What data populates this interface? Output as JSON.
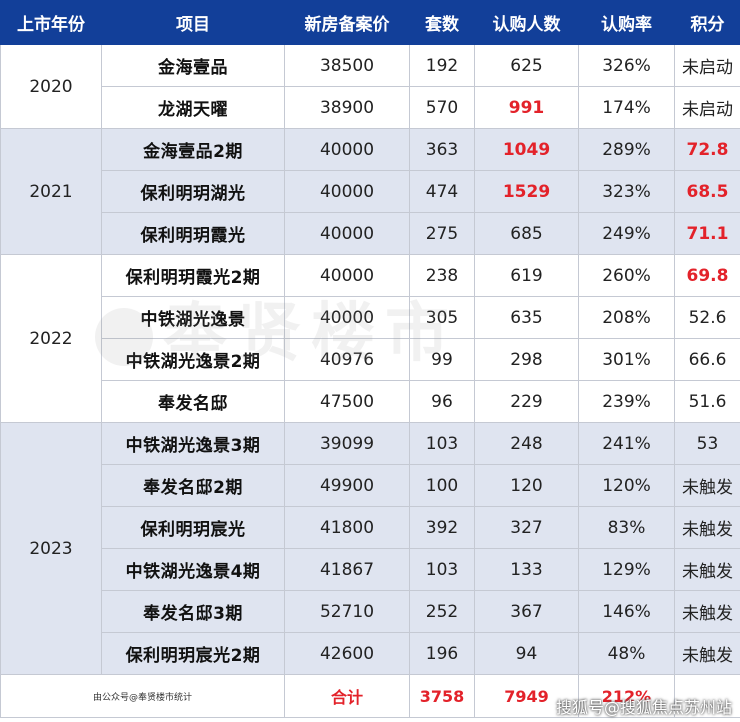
{
  "headers": [
    "上市年份",
    "项目",
    "新房备案价",
    "套数",
    "认购人数",
    "认购率",
    "积分"
  ],
  "years": [
    {
      "year": "2020",
      "rows": [
        {
          "name": "金海壹品",
          "price": "38500",
          "units": "192",
          "buyers": "625",
          "rate": "326%",
          "score": "未启动",
          "buyers_hl": false,
          "score_hl": false
        },
        {
          "name": "龙湖天曜",
          "price": "38900",
          "units": "570",
          "buyers": "991",
          "rate": "174%",
          "score": "未启动",
          "buyers_hl": true,
          "score_hl": false
        }
      ]
    },
    {
      "year": "2021",
      "rows": [
        {
          "name": "金海壹品2期",
          "price": "40000",
          "units": "363",
          "buyers": "1049",
          "rate": "289%",
          "score": "72.8",
          "buyers_hl": true,
          "score_hl": true
        },
        {
          "name": "保利明玥湖光",
          "price": "40000",
          "units": "474",
          "buyers": "1529",
          "rate": "323%",
          "score": "68.5",
          "buyers_hl": true,
          "score_hl": true
        },
        {
          "name": "保利明玥霞光",
          "price": "40000",
          "units": "275",
          "buyers": "685",
          "rate": "249%",
          "score": "71.1",
          "buyers_hl": false,
          "score_hl": true
        }
      ]
    },
    {
      "year": "2022",
      "rows": [
        {
          "name": "保利明玥霞光2期",
          "price": "40000",
          "units": "238",
          "buyers": "619",
          "rate": "260%",
          "score": "69.8",
          "buyers_hl": false,
          "score_hl": true
        },
        {
          "name": "中铁湖光逸景",
          "price": "40000",
          "units": "305",
          "buyers": "635",
          "rate": "208%",
          "score": "52.6",
          "buyers_hl": false,
          "score_hl": false
        },
        {
          "name": "中铁湖光逸景2期",
          "price": "40976",
          "units": "99",
          "buyers": "298",
          "rate": "301%",
          "score": "66.6",
          "buyers_hl": false,
          "score_hl": false
        },
        {
          "name": "奉发名邸",
          "price": "47500",
          "units": "96",
          "buyers": "229",
          "rate": "239%",
          "score": "51.6",
          "buyers_hl": false,
          "score_hl": false
        }
      ]
    },
    {
      "year": "2023",
      "rows": [
        {
          "name": "中铁湖光逸景3期",
          "price": "39099",
          "units": "103",
          "buyers": "248",
          "rate": "241%",
          "score": "53",
          "buyers_hl": false,
          "score_hl": false
        },
        {
          "name": "奉发名邸2期",
          "price": "49900",
          "units": "100",
          "buyers": "120",
          "rate": "120%",
          "score": "未触发",
          "buyers_hl": false,
          "score_hl": false
        },
        {
          "name": "保利明玥宸光",
          "price": "41800",
          "units": "392",
          "buyers": "327",
          "rate": "83%",
          "score": "未触发",
          "buyers_hl": false,
          "score_hl": false
        },
        {
          "name": "中铁湖光逸景4期",
          "price": "41867",
          "units": "103",
          "buyers": "133",
          "rate": "129%",
          "score": "未触发",
          "buyers_hl": false,
          "score_hl": false
        },
        {
          "name": "奉发名邸3期",
          "price": "52710",
          "units": "252",
          "buyers": "367",
          "rate": "146%",
          "score": "未触发",
          "buyers_hl": false,
          "score_hl": false
        },
        {
          "name": "保利明玥宸光2期",
          "price": "42600",
          "units": "196",
          "buyers": "94",
          "rate": "48%",
          "score": "未触发",
          "buyers_hl": false,
          "score_hl": false
        }
      ]
    }
  ],
  "footer": {
    "note": "由公众号@奉贤楼市统计",
    "total_label": "合计",
    "total_units": "3758",
    "total_buyers": "7949",
    "total_rate": "212%"
  },
  "watermark": "奉贤楼市",
  "brand": "搜狐号@搜狐焦点苏州站",
  "colors": {
    "header_bg": "#123f99",
    "highlight": "#e3222a",
    "shade": "#dfe4f0"
  }
}
